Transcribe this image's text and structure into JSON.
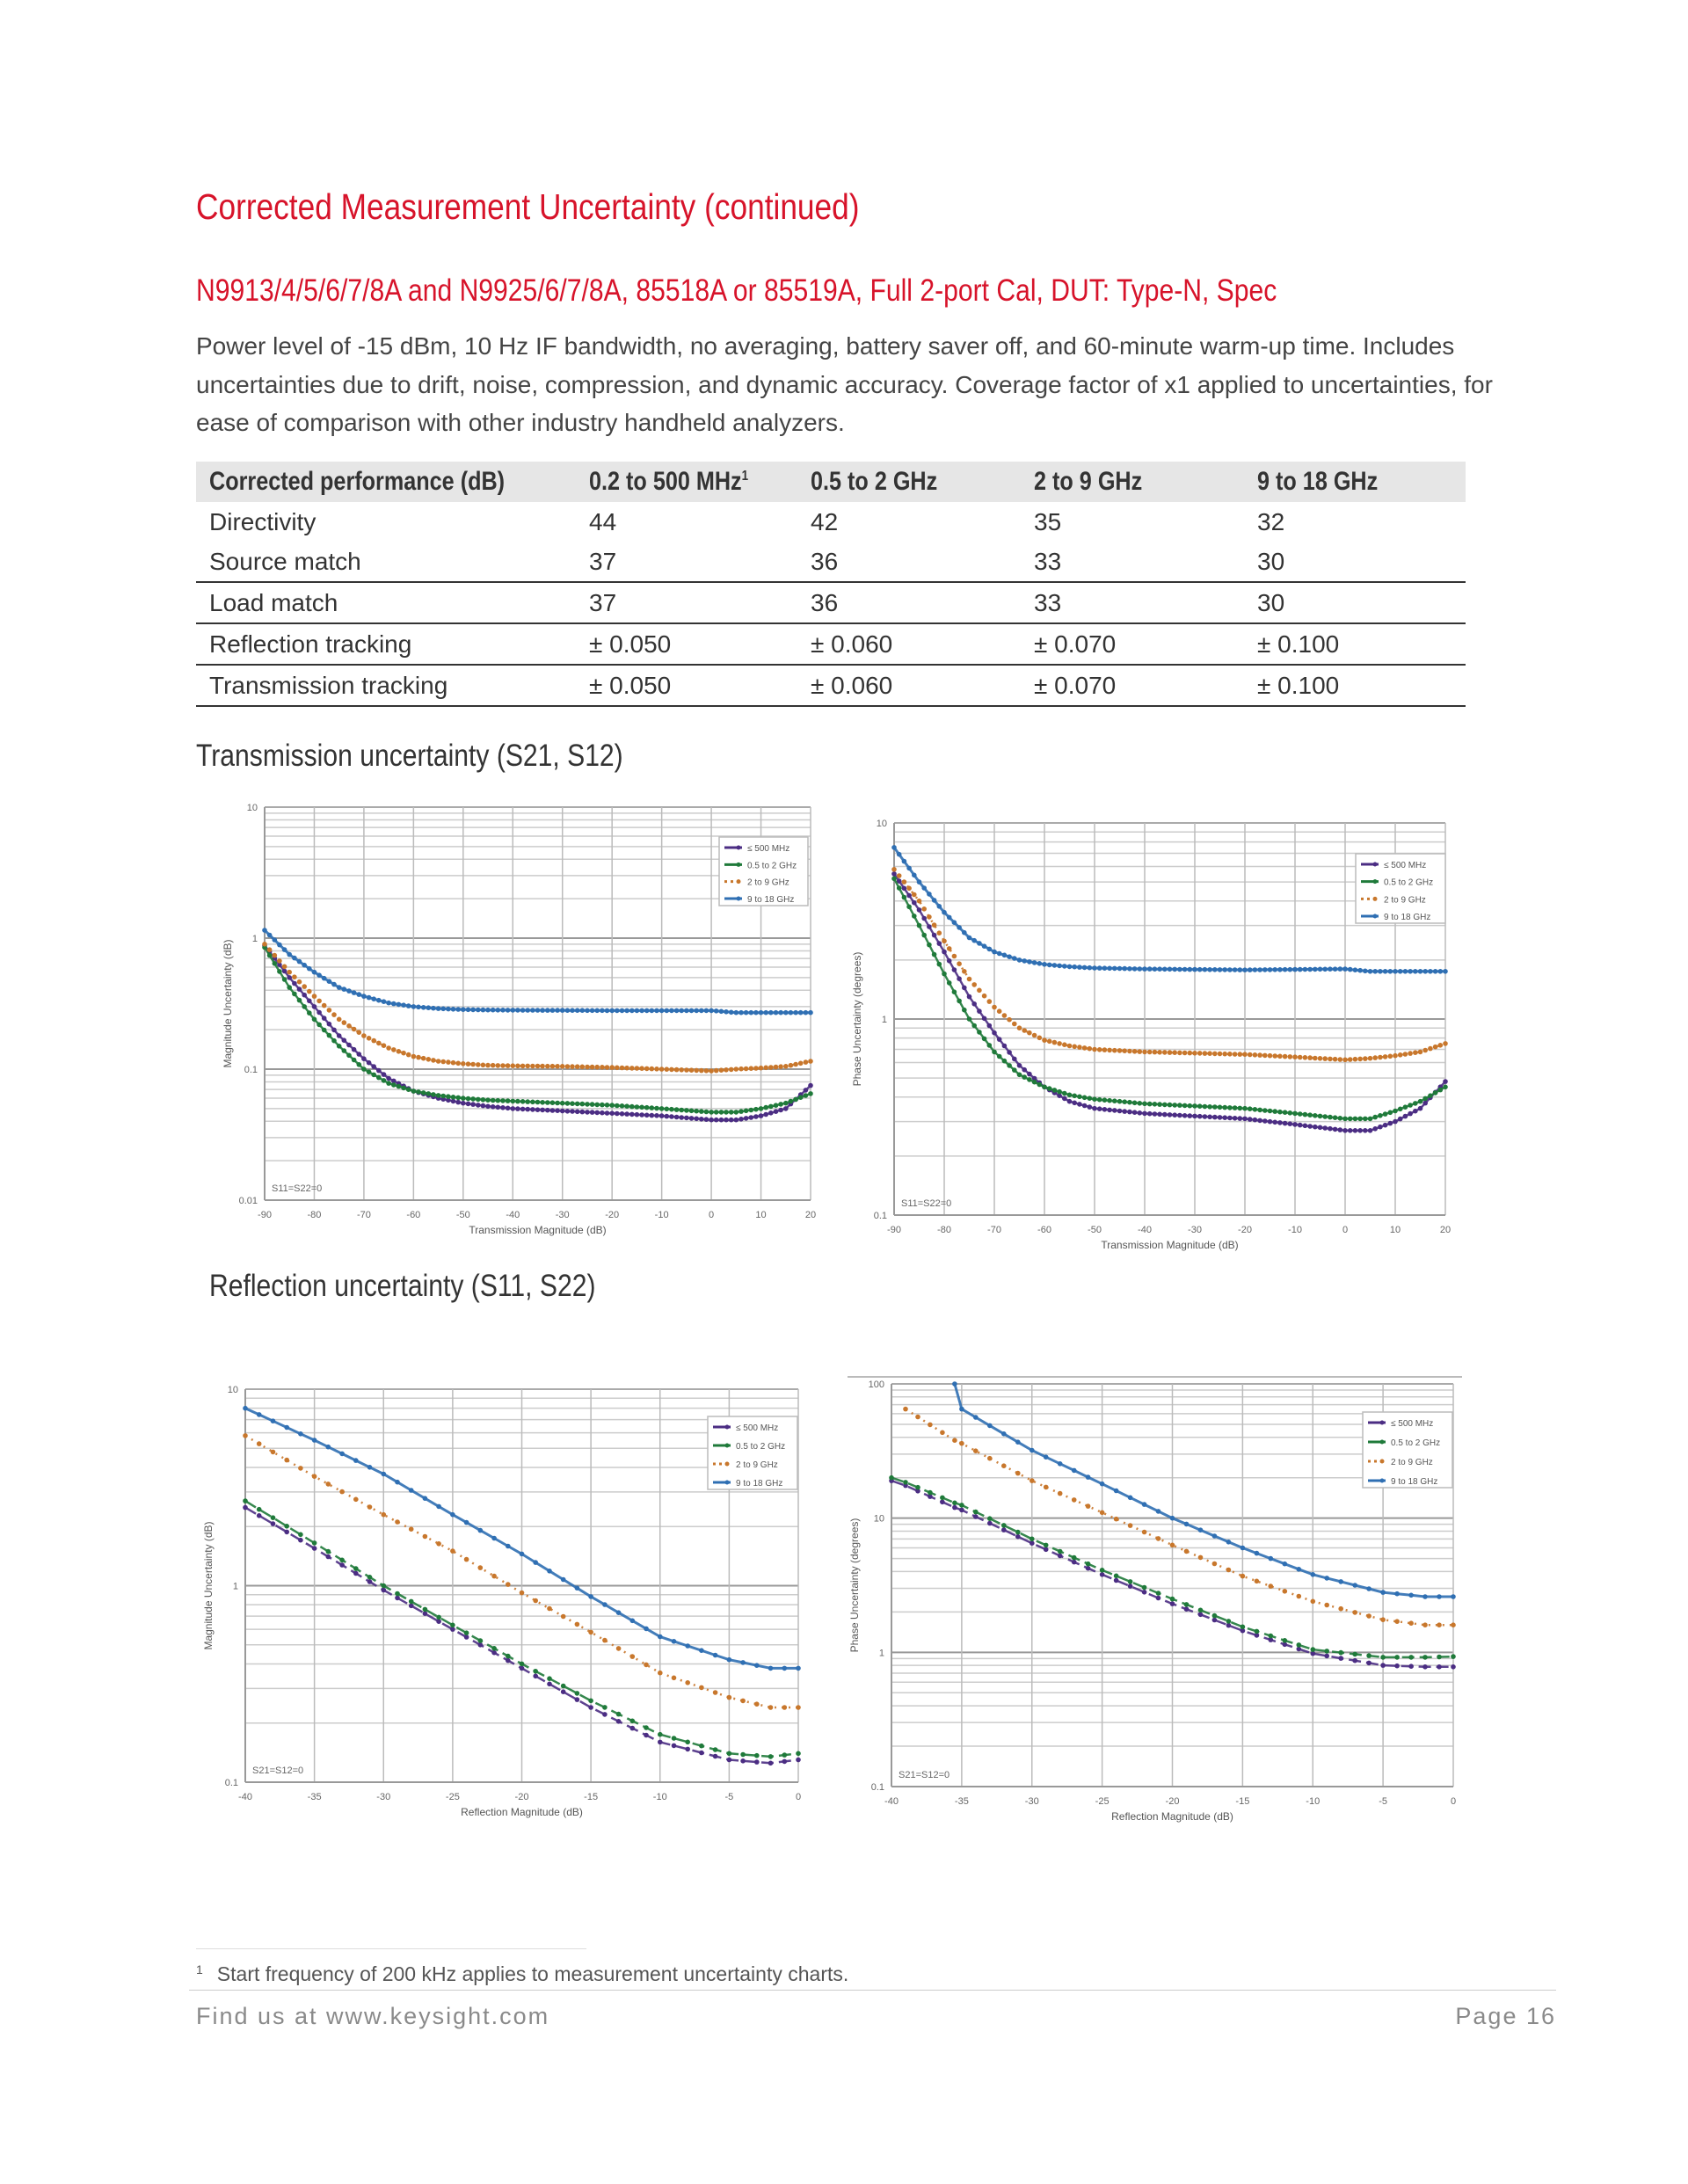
{
  "title": "Corrected Measurement Uncertainty (continued)",
  "subtitle": "N9913/4/5/6/7/8A and N9925/6/7/8A, 85518A or 85519A, Full 2-port Cal, DUT: Type-N, Spec",
  "intro": "Power level of -15 dBm, 10 Hz IF bandwidth, no averaging, battery saver off, and 60-minute warm-up time. Includes uncertainties due to drift, noise, compression, and dynamic accuracy. Coverage factor of x1 applied to uncertainties, for ease of comparison with other industry handheld analyzers.",
  "table": {
    "headers": [
      "Corrected performance (dB)",
      "0.2 to 500 MHz",
      "0.5 to 2 GHz",
      "2 to 9 GHz",
      "9 to 18 GHz"
    ],
    "header_footnote_mark": "1",
    "rows": [
      [
        "Directivity",
        "44",
        "42",
        "35",
        "32"
      ],
      [
        "Source match",
        "37",
        "36",
        "33",
        "30"
      ],
      [
        "Load match",
        "37",
        "36",
        "33",
        "30"
      ],
      [
        "Reflection tracking",
        "± 0.050",
        "± 0.060",
        "± 0.070",
        "± 0.100"
      ],
      [
        "Transmission tracking",
        "± 0.050",
        "± 0.060",
        "± 0.070",
        "± 0.100"
      ]
    ]
  },
  "sections": {
    "transmission": "Transmission uncertainty (S21, S12)",
    "reflection": "Reflection uncertainty (S11, S22)"
  },
  "colors": {
    "le500": "#4b2d83",
    "g05to2": "#1f7a3a",
    "g2to9": "#c8772c",
    "g9to18": "#2f6fb3",
    "accent": "#d7132a"
  },
  "chart_data": [
    {
      "type": "line",
      "id": "trans-mag",
      "title": "",
      "xlabel": "Transmission Magnitude (dB)",
      "ylabel": "Magnitude Uncertainty (dB)",
      "xlim": [
        -90,
        20
      ],
      "ylim": [
        0.01,
        10
      ],
      "yscale": "log",
      "xticks": [
        "-90",
        "-80",
        "-70",
        "-60",
        "-50",
        "-40",
        "-30",
        "-20",
        "-10",
        "0",
        "10",
        "20"
      ],
      "yticks": [
        "10",
        "1",
        "0.1",
        "0.01"
      ],
      "grid": true,
      "legend": "top-right",
      "annotation": "S11=S22=0",
      "x": [
        -90,
        -85,
        -80,
        -75,
        -70,
        -65,
        -60,
        -55,
        -50,
        -45,
        -40,
        -30,
        -20,
        -10,
        0,
        5,
        10,
        15,
        20
      ],
      "series": [
        {
          "name": "≤ 500 MHz",
          "values": [
            0.88,
            0.5,
            0.3,
            0.18,
            0.12,
            0.085,
            0.068,
            0.06,
            0.055,
            0.052,
            0.05,
            0.048,
            0.046,
            0.044,
            0.041,
            0.041,
            0.044,
            0.05,
            0.075
          ]
        },
        {
          "name": "0.5 to 2 GHz",
          "values": [
            0.85,
            0.42,
            0.24,
            0.15,
            0.1,
            0.078,
            0.068,
            0.063,
            0.06,
            0.058,
            0.057,
            0.055,
            0.053,
            0.05,
            0.047,
            0.047,
            0.05,
            0.055,
            0.065
          ]
        },
        {
          "name": "2 to 9 GHz",
          "values": [
            0.9,
            0.55,
            0.36,
            0.24,
            0.18,
            0.145,
            0.125,
            0.115,
            0.11,
            0.107,
            0.106,
            0.105,
            0.103,
            0.1,
            0.097,
            0.1,
            0.102,
            0.105,
            0.115
          ]
        },
        {
          "name": "9 to 18 GHz",
          "values": [
            1.15,
            0.75,
            0.55,
            0.42,
            0.36,
            0.32,
            0.3,
            0.29,
            0.285,
            0.283,
            0.282,
            0.281,
            0.28,
            0.28,
            0.28,
            0.27,
            0.27,
            0.27,
            0.27
          ]
        }
      ]
    },
    {
      "type": "line",
      "id": "trans-phase",
      "title": "",
      "xlabel": "Transmission Magnitude (dB)",
      "ylabel": "Phase Uncertainty (degrees)",
      "xlim": [
        -90,
        20
      ],
      "ylim": [
        0.1,
        10
      ],
      "yscale": "log",
      "xticks": [
        "-90",
        "-80",
        "-70",
        "-60",
        "-50",
        "-40",
        "-30",
        "-20",
        "-10",
        "0",
        "10",
        "20"
      ],
      "yticks": [
        "10",
        "1",
        "0.1"
      ],
      "grid": true,
      "legend": "top-right",
      "annotation": "S11=S22=0",
      "x": [
        -90,
        -85,
        -80,
        -75,
        -70,
        -65,
        -60,
        -55,
        -50,
        -45,
        -40,
        -30,
        -20,
        -10,
        0,
        5,
        10,
        15,
        20
      ],
      "series": [
        {
          "name": "≤ 500 MHz",
          "values": [
            5.5,
            3.6,
            2.2,
            1.3,
            0.85,
            0.58,
            0.45,
            0.38,
            0.35,
            0.34,
            0.33,
            0.32,
            0.31,
            0.29,
            0.27,
            0.27,
            0.3,
            0.35,
            0.48
          ]
        },
        {
          "name": "0.5 to 2 GHz",
          "values": [
            5.2,
            3.0,
            1.7,
            1.0,
            0.68,
            0.52,
            0.45,
            0.41,
            0.39,
            0.38,
            0.37,
            0.36,
            0.35,
            0.33,
            0.31,
            0.31,
            0.34,
            0.38,
            0.45
          ]
        },
        {
          "name": "2 to 9 GHz",
          "values": [
            5.8,
            4.0,
            2.5,
            1.6,
            1.15,
            0.9,
            0.78,
            0.73,
            0.7,
            0.69,
            0.68,
            0.67,
            0.66,
            0.64,
            0.62,
            0.63,
            0.65,
            0.68,
            0.75
          ]
        },
        {
          "name": "9 to 18 GHz",
          "values": [
            7.5,
            5.0,
            3.5,
            2.6,
            2.2,
            2.0,
            1.9,
            1.85,
            1.82,
            1.81,
            1.8,
            1.79,
            1.78,
            1.79,
            1.8,
            1.75,
            1.75,
            1.75,
            1.75
          ]
        }
      ]
    },
    {
      "type": "line",
      "id": "refl-mag",
      "title": "",
      "xlabel": "Reflection Magnitude (dB)",
      "ylabel": "Magnitude Uncertainty (dB)",
      "xlim": [
        -40,
        0
      ],
      "ylim": [
        0.1,
        10
      ],
      "yscale": "log",
      "xticks": [
        "-40",
        "-35",
        "-30",
        "-25",
        "-20",
        "-15",
        "-10",
        "-5",
        "0"
      ],
      "yticks": [
        "10",
        "1",
        "0.1"
      ],
      "grid": true,
      "legend": "top-right",
      "annotation": "S21=S12=0",
      "x": [
        -40,
        -35,
        -30,
        -25,
        -20,
        -15,
        -10,
        -5,
        -2,
        0
      ],
      "series": [
        {
          "name": "≤ 500 MHz",
          "values": [
            2.5,
            1.55,
            0.95,
            0.6,
            0.38,
            0.24,
            0.16,
            0.13,
            0.125,
            0.13
          ]
        },
        {
          "name": "0.5 to 2 GHz",
          "values": [
            2.7,
            1.65,
            1.0,
            0.63,
            0.4,
            0.26,
            0.175,
            0.14,
            0.135,
            0.14
          ]
        },
        {
          "name": "2 to 9 GHz",
          "values": [
            5.8,
            3.6,
            2.3,
            1.5,
            0.92,
            0.58,
            0.36,
            0.27,
            0.24,
            0.24
          ]
        },
        {
          "name": "9 to 18 GHz",
          "values": [
            8.0,
            5.5,
            3.7,
            2.3,
            1.45,
            0.88,
            0.55,
            0.42,
            0.38,
            0.38
          ]
        }
      ]
    },
    {
      "type": "line",
      "id": "refl-phase",
      "title": "",
      "xlabel": "Reflection Magnitude (dB)",
      "ylabel": "Phase Uncertainty (degrees)",
      "xlim": [
        -40,
        0
      ],
      "ylim": [
        0.1,
        100
      ],
      "yscale": "log",
      "xticks": [
        "-40",
        "-35",
        "-30",
        "-25",
        "-20",
        "-15",
        "-10",
        "-5",
        "0"
      ],
      "yticks": [
        "100",
        "10",
        "1",
        "0.1"
      ],
      "grid": true,
      "legend": "top-right",
      "annotation": "S21=S12=0",
      "x": [
        -40,
        -39,
        -35.5,
        -35,
        -30,
        -25,
        -20,
        -15,
        -10,
        -5,
        -2,
        0
      ],
      "series": [
        {
          "name": "≤ 500 MHz",
          "values": [
            19,
            17.5,
            12,
            11.5,
            6.5,
            3.8,
            2.3,
            1.45,
            0.98,
            0.8,
            0.78,
            0.78
          ]
        },
        {
          "name": "0.5 to 2 GHz",
          "values": [
            20,
            18.5,
            13,
            12.5,
            7,
            4.1,
            2.5,
            1.55,
            1.05,
            0.92,
            0.92,
            0.93
          ]
        },
        {
          "name": "2 to 9 GHz",
          "values": [
            null,
            65,
            38,
            36,
            19,
            11,
            6.3,
            3.7,
            2.4,
            1.75,
            1.6,
            1.6
          ]
        },
        {
          "name": "9 to 18 GHz",
          "values": [
            null,
            null,
            100,
            65,
            32,
            18,
            10,
            6,
            3.8,
            2.8,
            2.6,
            2.6
          ]
        }
      ]
    }
  ],
  "footnote": {
    "mark": "1",
    "text": "Start frequency of 200 kHz applies to measurement uncertainty charts."
  },
  "footer": {
    "left": "Find us at www.keysight.com",
    "right": "Page 16"
  }
}
